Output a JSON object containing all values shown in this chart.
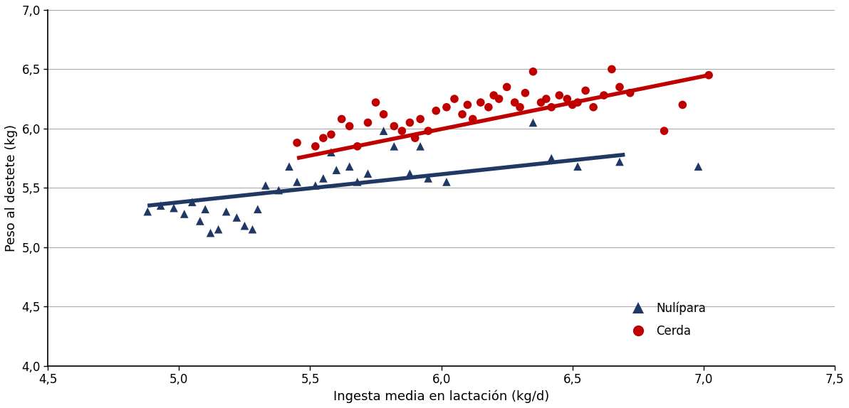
{
  "nullipara_x": [
    4.88,
    4.93,
    4.98,
    5.02,
    5.05,
    5.08,
    5.1,
    5.12,
    5.15,
    5.18,
    5.22,
    5.25,
    5.28,
    5.3,
    5.33,
    5.38,
    5.42,
    5.45,
    5.52,
    5.55,
    5.58,
    5.6,
    5.65,
    5.68,
    5.72,
    5.78,
    5.82,
    5.88,
    5.92,
    5.95,
    6.02,
    6.35,
    6.42,
    6.52,
    6.68,
    6.98
  ],
  "nullipara_y": [
    5.3,
    5.35,
    5.33,
    5.28,
    5.38,
    5.22,
    5.32,
    5.12,
    5.15,
    5.3,
    5.25,
    5.18,
    5.15,
    5.32,
    5.52,
    5.48,
    5.68,
    5.55,
    5.52,
    5.58,
    5.8,
    5.65,
    5.68,
    5.55,
    5.62,
    5.98,
    5.85,
    5.62,
    5.85,
    5.58,
    5.55,
    6.05,
    5.75,
    5.68,
    5.72,
    5.68
  ],
  "cerda_x": [
    5.45,
    5.52,
    5.55,
    5.58,
    5.62,
    5.65,
    5.68,
    5.72,
    5.75,
    5.78,
    5.82,
    5.85,
    5.88,
    5.9,
    5.92,
    5.95,
    5.98,
    6.02,
    6.05,
    6.08,
    6.1,
    6.12,
    6.15,
    6.18,
    6.2,
    6.22,
    6.25,
    6.28,
    6.3,
    6.32,
    6.35,
    6.38,
    6.4,
    6.42,
    6.45,
    6.48,
    6.5,
    6.52,
    6.55,
    6.58,
    6.62,
    6.65,
    6.68,
    6.72,
    6.85,
    6.92,
    7.02
  ],
  "cerda_y": [
    5.88,
    5.85,
    5.92,
    5.95,
    6.08,
    6.02,
    5.85,
    6.05,
    6.22,
    6.12,
    6.02,
    5.98,
    6.05,
    5.92,
    6.08,
    5.98,
    6.15,
    6.18,
    6.25,
    6.12,
    6.2,
    6.08,
    6.22,
    6.18,
    6.28,
    6.25,
    6.35,
    6.22,
    6.18,
    6.3,
    6.48,
    6.22,
    6.25,
    6.18,
    6.28,
    6.25,
    6.2,
    6.22,
    6.32,
    6.18,
    6.28,
    6.5,
    6.35,
    6.3,
    5.98,
    6.2,
    6.45
  ],
  "nullipara_line_x": [
    4.88,
    6.7
  ],
  "nullipara_line_y": [
    5.35,
    5.78
  ],
  "cerda_line_x": [
    5.45,
    7.02
  ],
  "cerda_line_y": [
    5.75,
    6.45
  ],
  "nullipara_color": "#1F3864",
  "cerda_color": "#C00000",
  "nullipara_line_color": "#1F3864",
  "cerda_line_color": "#C00000",
  "xlabel": "Ingesta media en lactación (kg/d)",
  "ylabel": "Peso al destete (kg)",
  "xlim": [
    4.5,
    7.5
  ],
  "ylim": [
    4.0,
    7.0
  ],
  "xticks": [
    4.5,
    5.0,
    5.5,
    6.0,
    6.5,
    7.0,
    7.5
  ],
  "yticks": [
    4.0,
    4.5,
    5.0,
    5.5,
    6.0,
    6.5,
    7.0
  ],
  "legend_labels": [
    "Nulípara",
    "Cerda"
  ],
  "background_color": "#FFFFFF",
  "grid_color": "#AAAAAA",
  "label_fontsize": 13,
  "tick_fontsize": 12,
  "marker_size": 70,
  "line_width": 4
}
